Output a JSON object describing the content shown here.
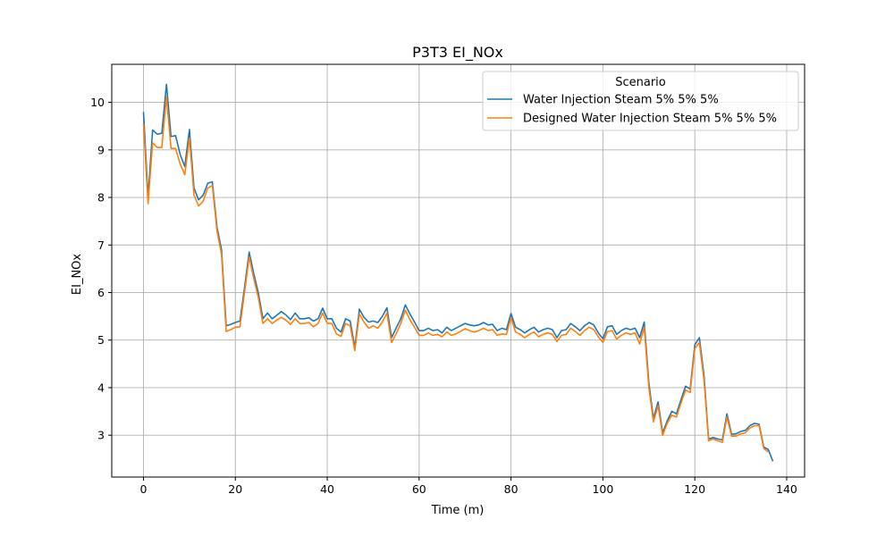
{
  "chart_data": {
    "type": "line",
    "title": "P3T3 EI_NOx",
    "xlabel": "Time (m)",
    "ylabel": "EI_NOx",
    "xlim": [
      -6.9,
      143.9
    ],
    "ylim": [
      2.12,
      10.8
    ],
    "xticks": [
      0,
      20,
      40,
      60,
      80,
      100,
      120,
      140
    ],
    "yticks": [
      3,
      4,
      5,
      6,
      7,
      8,
      9,
      10
    ],
    "grid": true,
    "legend": {
      "title": "Scenario",
      "placement": "top-right"
    },
    "series": [
      {
        "name": "Water Injection Steam 5% 5% 5%",
        "color": "#1f77b4",
        "x": [
          0,
          1,
          2,
          3,
          4,
          5,
          6,
          7,
          8,
          9,
          10,
          11,
          12,
          13,
          14,
          15,
          16,
          17,
          18,
          19,
          20,
          21,
          22,
          23,
          24,
          25,
          26,
          27,
          28,
          29,
          30,
          31,
          32,
          33,
          34,
          35,
          36,
          37,
          38,
          39,
          40,
          41,
          42,
          43,
          44,
          45,
          46,
          47,
          48,
          49,
          50,
          51,
          52,
          53,
          54,
          55,
          56,
          57,
          58,
          59,
          60,
          61,
          62,
          63,
          64,
          65,
          66,
          67,
          68,
          69,
          70,
          71,
          72,
          73,
          74,
          75,
          76,
          77,
          78,
          79,
          80,
          81,
          82,
          83,
          84,
          85,
          86,
          87,
          88,
          89,
          90,
          91,
          92,
          93,
          94,
          95,
          96,
          97,
          98,
          99,
          100,
          101,
          102,
          103,
          104,
          105,
          106,
          107,
          108,
          109,
          110,
          111,
          112,
          113,
          114,
          115,
          116,
          117,
          118,
          119,
          120,
          121,
          122,
          123,
          124,
          125,
          126,
          127,
          128,
          129,
          130,
          131,
          132,
          133,
          134,
          135,
          136,
          137
        ],
        "y": [
          9.8,
          8.0,
          9.42,
          9.33,
          9.35,
          10.38,
          9.28,
          9.3,
          8.9,
          8.65,
          9.43,
          8.2,
          7.95,
          8.05,
          8.3,
          8.33,
          7.38,
          6.9,
          5.3,
          5.33,
          5.37,
          5.4,
          6.1,
          6.85,
          6.4,
          6.0,
          5.45,
          5.57,
          5.45,
          5.52,
          5.6,
          5.53,
          5.43,
          5.57,
          5.45,
          5.45,
          5.47,
          5.4,
          5.45,
          5.67,
          5.45,
          5.45,
          5.25,
          5.17,
          5.45,
          5.4,
          4.85,
          5.65,
          5.48,
          5.38,
          5.4,
          5.37,
          5.5,
          5.68,
          5.05,
          5.25,
          5.45,
          5.74,
          5.55,
          5.38,
          5.2,
          5.2,
          5.25,
          5.2,
          5.22,
          5.15,
          5.27,
          5.2,
          5.25,
          5.3,
          5.35,
          5.32,
          5.3,
          5.32,
          5.37,
          5.32,
          5.33,
          5.2,
          5.25,
          5.22,
          5.56,
          5.27,
          5.22,
          5.15,
          5.22,
          5.27,
          5.17,
          5.22,
          5.25,
          5.22,
          5.05,
          5.2,
          5.22,
          5.35,
          5.28,
          5.2,
          5.3,
          5.37,
          5.32,
          5.15,
          5.03,
          5.28,
          5.3,
          5.12,
          5.2,
          5.25,
          5.22,
          5.25,
          5.05,
          5.38,
          4.1,
          3.35,
          3.7,
          3.05,
          3.3,
          3.5,
          3.45,
          3.75,
          4.03,
          3.97,
          4.9,
          5.05,
          4.25,
          2.92,
          2.95,
          2.92,
          2.9,
          3.45,
          3.02,
          3.03,
          3.08,
          3.1,
          3.2,
          3.25,
          3.23,
          2.75,
          2.7,
          2.45
        ]
      },
      {
        "name": "Designed Water Injection Steam 5% 5% 5%",
        "color": "#ff7f0e",
        "x": [
          0,
          1,
          2,
          3,
          4,
          5,
          6,
          7,
          8,
          9,
          10,
          11,
          12,
          13,
          14,
          15,
          16,
          17,
          18,
          19,
          20,
          21,
          22,
          23,
          24,
          25,
          26,
          27,
          28,
          29,
          30,
          31,
          32,
          33,
          34,
          35,
          36,
          37,
          38,
          39,
          40,
          41,
          42,
          43,
          44,
          45,
          46,
          47,
          48,
          49,
          50,
          51,
          52,
          53,
          54,
          55,
          56,
          57,
          58,
          59,
          60,
          61,
          62,
          63,
          64,
          65,
          66,
          67,
          68,
          69,
          70,
          71,
          72,
          73,
          74,
          75,
          76,
          77,
          78,
          79,
          80,
          81,
          82,
          83,
          84,
          85,
          86,
          87,
          88,
          89,
          90,
          91,
          92,
          93,
          94,
          95,
          96,
          97,
          98,
          99,
          100,
          101,
          102,
          103,
          104,
          105,
          106,
          107,
          108,
          109,
          110,
          111,
          112,
          113,
          114,
          115,
          116,
          117,
          118,
          119,
          120,
          121,
          122,
          123,
          124,
          125,
          126,
          127,
          128,
          129,
          130,
          131,
          132,
          133,
          134,
          135,
          136
        ],
        "y": [
          9.55,
          7.87,
          9.15,
          9.05,
          9.05,
          10.12,
          9.03,
          9.03,
          8.7,
          8.48,
          9.25,
          8.05,
          7.82,
          7.92,
          8.2,
          8.25,
          7.3,
          6.8,
          5.18,
          5.22,
          5.27,
          5.28,
          6.0,
          6.75,
          6.3,
          5.9,
          5.35,
          5.45,
          5.35,
          5.42,
          5.48,
          5.42,
          5.33,
          5.45,
          5.35,
          5.35,
          5.37,
          5.28,
          5.35,
          5.57,
          5.35,
          5.35,
          5.13,
          5.08,
          5.35,
          5.3,
          4.78,
          5.55,
          5.38,
          5.25,
          5.3,
          5.25,
          5.38,
          5.57,
          4.95,
          5.13,
          5.35,
          5.63,
          5.43,
          5.27,
          5.1,
          5.1,
          5.15,
          5.1,
          5.12,
          5.07,
          5.17,
          5.1,
          5.13,
          5.18,
          5.24,
          5.2,
          5.17,
          5.2,
          5.25,
          5.2,
          5.22,
          5.1,
          5.13,
          5.12,
          5.47,
          5.17,
          5.12,
          5.05,
          5.12,
          5.17,
          5.07,
          5.12,
          5.15,
          5.12,
          4.97,
          5.1,
          5.12,
          5.25,
          5.18,
          5.1,
          5.2,
          5.27,
          5.22,
          5.07,
          4.95,
          5.18,
          5.2,
          5.02,
          5.1,
          5.15,
          5.12,
          5.15,
          4.92,
          5.27,
          4.0,
          3.28,
          3.62,
          3.0,
          3.25,
          3.42,
          3.38,
          3.68,
          3.95,
          3.9,
          4.82,
          4.95,
          4.15,
          2.88,
          2.92,
          2.88,
          2.85,
          3.38,
          2.98,
          2.98,
          3.03,
          3.05,
          3.15,
          3.2,
          3.2,
          2.72,
          2.65
        ]
      }
    ]
  }
}
